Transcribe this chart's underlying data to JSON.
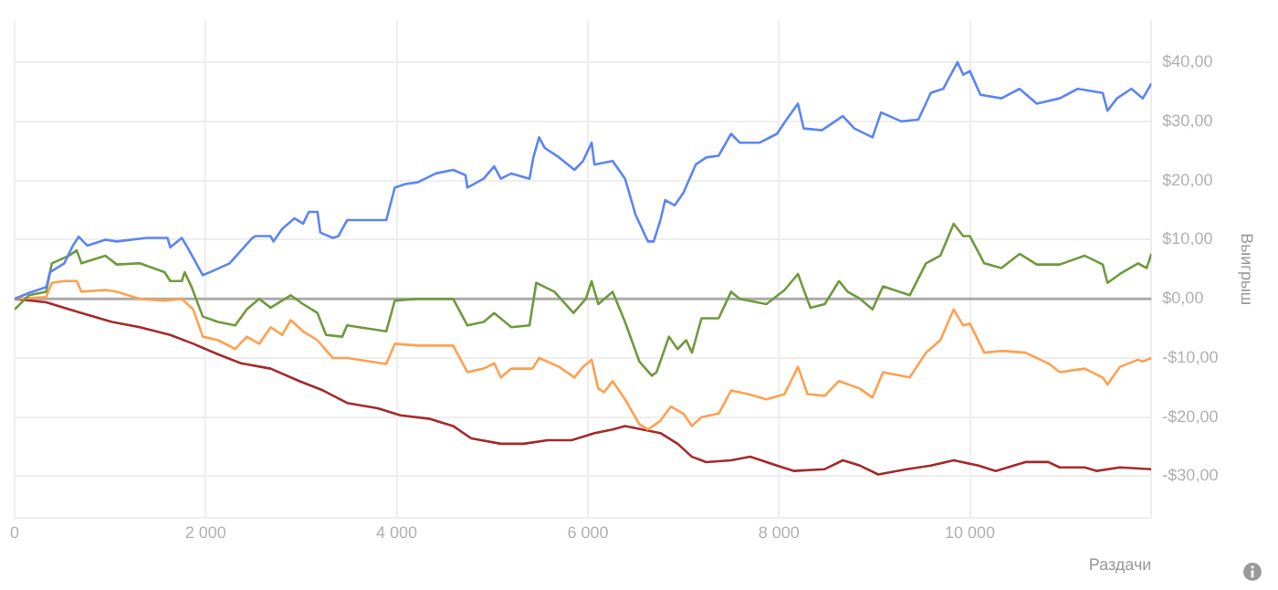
{
  "chart_data": {
    "type": "line",
    "xlabel": "Раздачи",
    "ylabel": "Выигрыш",
    "xlim": [
      0,
      11900
    ],
    "ylim": [
      -37,
      47
    ],
    "xticks": [
      0,
      {
        "value": 2000,
        "label": "2 000"
      },
      {
        "value": 4000,
        "label": "4 000"
      },
      {
        "value": 6000,
        "label": "6 000"
      },
      {
        "value": 8000,
        "label": "8 000"
      },
      {
        "value": 10000,
        "label": "10 000"
      }
    ],
    "yticks": [
      {
        "value": -30,
        "label": "-$30,00"
      },
      {
        "value": -20,
        "label": "-$20,00"
      },
      {
        "value": -10,
        "label": "-$10,00"
      },
      {
        "value": 0,
        "label": "$0,00"
      },
      {
        "value": 10,
        "label": "$10,00"
      },
      {
        "value": 20,
        "label": "$20,00"
      },
      {
        "value": 30,
        "label": "$30,00"
      },
      {
        "value": 40,
        "label": "$40,00"
      }
    ],
    "grid": true,
    "legend": false,
    "marker": "none",
    "line_style": "solid",
    "ref_lines": [
      {
        "axis": "y",
        "value": 0,
        "color": "#aaaaaa"
      }
    ],
    "series": [
      {
        "color": "#5b85f5",
        "x": [
          0,
          150,
          333,
          370,
          520,
          610,
          670,
          760,
          950,
          1070,
          1380,
          1600,
          1630,
          1750,
          1810,
          1970,
          2060,
          2250,
          2490,
          2520,
          2680,
          2710,
          2800,
          2930,
          3020,
          3080,
          3170,
          3200,
          3330,
          3390,
          3480,
          3890,
          3980,
          4090,
          4220,
          4410,
          4590,
          4720,
          4740,
          4910,
          5020,
          5090,
          5200,
          5390,
          5430,
          5490,
          5550,
          5700,
          5860,
          5950,
          6040,
          6070,
          6260,
          6390,
          6500,
          6630,
          6690,
          6760,
          6810,
          6910,
          7000,
          7130,
          7240,
          7370,
          7500,
          7590,
          7800,
          7980,
          8080,
          8200,
          8260,
          8450,
          8670,
          8790,
          8980,
          9070,
          9280,
          9460,
          9590,
          9720,
          9870,
          9930,
          10000,
          10110,
          10330,
          10520,
          10700,
          10940,
          11130,
          11390,
          11440,
          11540,
          11690,
          11810,
          11900
        ],
        "values": [
          0,
          1,
          2,
          4.5,
          6,
          9,
          10.5,
          9,
          10,
          9.7,
          10.3,
          10.3,
          8.7,
          10.3,
          8.7,
          4,
          4.6,
          6,
          10.3,
          10.6,
          10.6,
          9.7,
          11.8,
          13.6,
          12.7,
          14.7,
          14.7,
          11.2,
          10.3,
          10.6,
          13.3,
          13.3,
          18.8,
          19.4,
          19.7,
          21.2,
          21.8,
          20.9,
          18.8,
          20.3,
          22.4,
          20.3,
          21.2,
          20.3,
          23.9,
          27.3,
          25.5,
          23.9,
          21.8,
          23.3,
          26.4,
          22.7,
          23.3,
          20.3,
          14.2,
          9.7,
          9.7,
          13.3,
          16.7,
          15.8,
          17.9,
          22.7,
          23.9,
          24.2,
          27.9,
          26.4,
          26.4,
          27.9,
          30.3,
          33,
          28.8,
          28.5,
          30.9,
          28.8,
          27.3,
          31.5,
          30,
          30.3,
          34.8,
          35.5,
          40,
          37.9,
          38.5,
          34.5,
          33.9,
          35.5,
          33,
          33.9,
          35.5,
          34.8,
          31.8,
          33.9,
          35.5,
          33.9,
          36.4
        ]
      },
      {
        "color": "#6f9a3d",
        "x": [
          0,
          150,
          330,
          390,
          570,
          650,
          700,
          950,
          1070,
          1310,
          1570,
          1630,
          1750,
          1780,
          1850,
          1970,
          2130,
          2310,
          2430,
          2560,
          2680,
          2890,
          3020,
          3170,
          3260,
          3430,
          3480,
          3890,
          3980,
          4220,
          4590,
          4740,
          4910,
          5020,
          5200,
          5390,
          5460,
          5650,
          5800,
          5850,
          5980,
          6040,
          6110,
          6260,
          6390,
          6540,
          6670,
          6720,
          6850,
          6940,
          7030,
          7090,
          7190,
          7370,
          7500,
          7590,
          7870,
          8060,
          8200,
          8330,
          8480,
          8630,
          8720,
          8850,
          8980,
          9090,
          9370,
          9540,
          9690,
          9830,
          9930,
          10000,
          10150,
          10330,
          10520,
          10700,
          10940,
          11200,
          11390,
          11440,
          11570,
          11760,
          11850,
          11900
        ],
        "values": [
          -1.8,
          0.6,
          1.2,
          6,
          7.3,
          8.2,
          6,
          7.3,
          5.8,
          6,
          4.5,
          3,
          3,
          4.5,
          2.1,
          -3,
          -3.9,
          -4.5,
          -1.8,
          0,
          -1.5,
          0.6,
          -0.9,
          -2.4,
          -6.1,
          -6.4,
          -4.5,
          -5.5,
          -0.3,
          0,
          0,
          -4.5,
          -3.9,
          -2.4,
          -4.8,
          -4.5,
          2.7,
          1.2,
          -1.5,
          -2.4,
          0,
          3,
          -0.9,
          1.2,
          -3.9,
          -10.6,
          -13,
          -12.4,
          -6.4,
          -8.5,
          -7,
          -9.1,
          -3.3,
          -3.3,
          1.2,
          0,
          -0.9,
          1.5,
          4.2,
          -1.5,
          -0.9,
          3,
          1.2,
          0,
          -1.8,
          2.1,
          0.6,
          6,
          7.3,
          12.7,
          10.6,
          10.6,
          6,
          5.2,
          7.6,
          5.8,
          5.8,
          7.3,
          5.8,
          2.7,
          4.2,
          6,
          5.2,
          7.6
        ]
      },
      {
        "color": "#ffa04f",
        "x": [
          0,
          330,
          390,
          520,
          650,
          700,
          950,
          1070,
          1310,
          1570,
          1750,
          1870,
          1970,
          2130,
          2310,
          2430,
          2560,
          2680,
          2800,
          2890,
          3020,
          3170,
          3330,
          3480,
          3890,
          3980,
          4220,
          4590,
          4740,
          4910,
          5020,
          5090,
          5200,
          5420,
          5490,
          5700,
          5860,
          5950,
          6040,
          6110,
          6170,
          6260,
          6390,
          6540,
          6630,
          6760,
          6870,
          7000,
          7090,
          7190,
          7370,
          7500,
          7680,
          7870,
          8060,
          8200,
          8300,
          8480,
          8630,
          8850,
          8980,
          9090,
          9370,
          9540,
          9690,
          9830,
          9930,
          10000,
          10150,
          10330,
          10580,
          10830,
          10940,
          11200,
          11390,
          11440,
          11570,
          11760,
          11810,
          11900
        ],
        "values": [
          0,
          0.3,
          2.7,
          3,
          3,
          1.2,
          1.5,
          1.2,
          0,
          -0.3,
          0,
          -1.8,
          -6.4,
          -7,
          -8.5,
          -6.4,
          -7.6,
          -4.8,
          -6.1,
          -3.6,
          -5.5,
          -7,
          -10,
          -10,
          -11,
          -7.6,
          -7.9,
          -7.9,
          -12.4,
          -11.8,
          -10.9,
          -13.3,
          -11.8,
          -11.8,
          -10,
          -11.5,
          -13.3,
          -11.5,
          -10.3,
          -15.2,
          -15.8,
          -13.9,
          -17,
          -21.2,
          -22.1,
          -20.6,
          -18.2,
          -19.4,
          -21.5,
          -20,
          -19.4,
          -15.5,
          -16.1,
          -17,
          -16.1,
          -11.5,
          -16.1,
          -16.4,
          -13.9,
          -15.2,
          -16.7,
          -12.4,
          -13.3,
          -9.1,
          -7,
          -1.8,
          -4.5,
          -4.2,
          -9.1,
          -8.8,
          -9.1,
          -11,
          -12.4,
          -11.8,
          -13.3,
          -14.5,
          -11.5,
          -10.3,
          -10.6,
          -10
        ]
      },
      {
        "color": "#a52a2a",
        "x": [
          0,
          330,
          700,
          1020,
          1310,
          1630,
          1870,
          2130,
          2370,
          2680,
          2980,
          3230,
          3480,
          3800,
          4040,
          4350,
          4590,
          4780,
          5090,
          5330,
          5580,
          5830,
          6070,
          6260,
          6390,
          6570,
          6760,
          6940,
          7090,
          7240,
          7500,
          7700,
          7980,
          8160,
          8480,
          8670,
          8850,
          9040,
          9340,
          9590,
          9830,
          10090,
          10270,
          10580,
          10820,
          10940,
          11200,
          11330,
          11570,
          11900
        ],
        "values": [
          0,
          -0.6,
          -2.4,
          -3.9,
          -4.8,
          -6.1,
          -7.6,
          -9.4,
          -10.9,
          -11.8,
          -13.9,
          -15.5,
          -17.6,
          -18.5,
          -19.7,
          -20.3,
          -21.5,
          -23.6,
          -24.5,
          -24.5,
          -23.9,
          -23.9,
          -22.7,
          -22.1,
          -21.5,
          -22.1,
          -22.7,
          -24.5,
          -26.7,
          -27.6,
          -27.3,
          -26.7,
          -28.2,
          -29.1,
          -28.8,
          -27.3,
          -28.2,
          -29.7,
          -28.8,
          -28.2,
          -27.3,
          -28.2,
          -29.1,
          -27.6,
          -27.6,
          -28.5,
          -28.5,
          -29.1,
          -28.5,
          -28.8
        ]
      }
    ]
  }
}
